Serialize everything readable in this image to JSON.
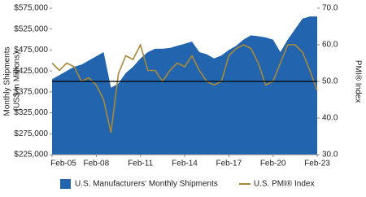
{
  "chart_data": {
    "type": "area_line",
    "y_label": [
      "Monthly Shipments",
      "(US$ in Millions)"
    ],
    "y2_label": "PMI® Index",
    "x": [
      "Feb-05",
      null,
      null,
      null,
      null,
      null,
      "Feb-08",
      null,
      null,
      null,
      null,
      null,
      "Feb-11",
      null,
      null,
      null,
      null,
      null,
      "Feb-14",
      null,
      null,
      null,
      null,
      null,
      "Feb-17",
      null,
      null,
      null,
      null,
      null,
      "Feb-20",
      null,
      null,
      null,
      null,
      null,
      "Feb-23"
    ],
    "ylim": [
      225000,
      575000
    ],
    "yticks": [
      {
        "value": 225000,
        "label": "$225,000"
      },
      {
        "value": 275000,
        "label": "$275,000"
      },
      {
        "value": 325000,
        "label": "$325,000"
      },
      {
        "value": 375000,
        "label": "$375,000"
      },
      {
        "value": 425000,
        "label": "$425,000"
      },
      {
        "value": 475000,
        "label": "$475,000"
      },
      {
        "value": 525000,
        "label": "$525,000"
      },
      {
        "value": 575000,
        "label": "$575,000"
      }
    ],
    "y2lim": [
      30,
      70
    ],
    "y2ticks": [
      {
        "value": 30,
        "label": "30.0"
      },
      {
        "value": 40,
        "label": "40.0"
      },
      {
        "value": 50,
        "label": "50.0"
      },
      {
        "value": 60,
        "label": "60.0"
      },
      {
        "value": 70,
        "label": "70.0"
      }
    ],
    "hline": {
      "value": 50,
      "axis": "y2",
      "color": "#000000"
    },
    "series": [
      {
        "name": "U.S. Manufacturers' Monthly Shipments",
        "type": "area",
        "color": "#2265ae",
        "values": [
          405000,
          415000,
          425000,
          435000,
          440000,
          450000,
          460000,
          470000,
          385000,
          395000,
          420000,
          435000,
          455000,
          470000,
          478000,
          478000,
          480000,
          485000,
          490000,
          495000,
          470000,
          465000,
          455000,
          462000,
          475000,
          485000,
          500000,
          510000,
          508000,
          505000,
          500000,
          470000,
          500000,
          525000,
          550000,
          555000,
          555000
        ]
      },
      {
        "name": "U.S. PMI® Index",
        "type": "line",
        "axis": "y2",
        "color": "#a8893a",
        "values": [
          55,
          53,
          55,
          54,
          50,
          51,
          49,
          45,
          36,
          52,
          57,
          56,
          60,
          53,
          53,
          50,
          53,
          55,
          54,
          57,
          53,
          50,
          49,
          50,
          57,
          59,
          60,
          59,
          55,
          49,
          50,
          55,
          60,
          60,
          58,
          53,
          47.5
        ]
      }
    ]
  }
}
